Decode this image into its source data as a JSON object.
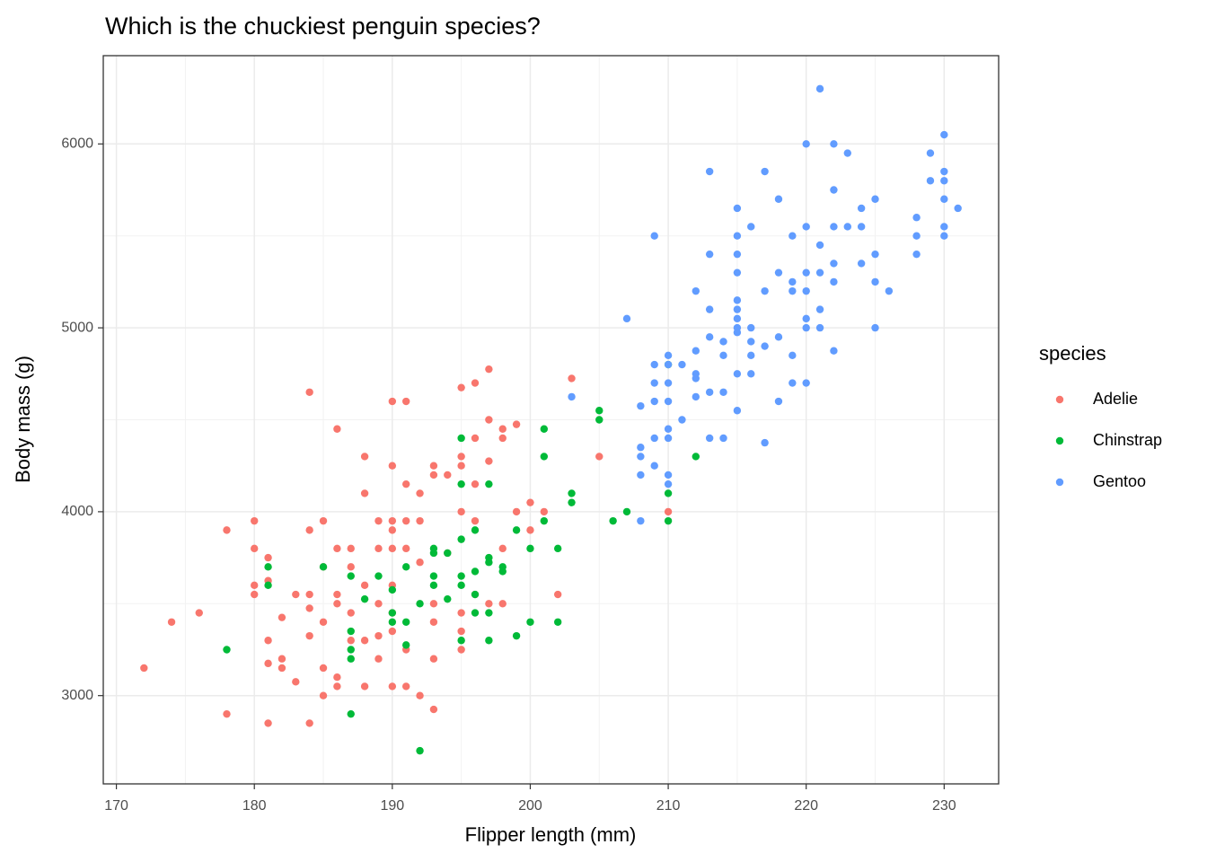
{
  "chart_data": {
    "type": "scatter",
    "title": "Which is the chuckiest penguin species?",
    "x_label": "Flipper length (mm)",
    "y_label": "Body mass (g)",
    "legend_title": "species",
    "legend": "right",
    "grid": true,
    "xlim": [
      169.05,
      233.95
    ],
    "ylim": [
      2520,
      6480
    ],
    "xticks": [
      170,
      180,
      190,
      200,
      210,
      220,
      230
    ],
    "yticks": [
      3000,
      4000,
      5000,
      6000
    ],
    "x_minor_ticks": [
      175,
      185,
      195,
      205,
      215,
      225
    ],
    "y_minor_ticks": [
      3500,
      4500,
      5500
    ],
    "series": [
      {
        "name": "Adelie",
        "color": "#F8766D",
        "x": [
          172,
          174,
          176,
          178,
          178,
          180,
          180,
          180,
          180,
          181,
          181,
          181,
          181,
          181,
          182,
          182,
          182,
          183,
          183,
          184,
          184,
          184,
          184,
          184,
          184,
          185,
          185,
          185,
          185,
          185,
          186,
          186,
          186,
          186,
          186,
          186,
          187,
          187,
          187,
          187,
          188,
          188,
          188,
          188,
          188,
          189,
          189,
          189,
          189,
          189,
          190,
          190,
          190,
          190,
          190,
          190,
          190,
          190,
          190,
          191,
          191,
          191,
          191,
          191,
          191,
          192,
          192,
          192,
          192,
          193,
          193,
          193,
          193,
          193,
          193,
          194,
          194,
          195,
          195,
          195,
          195,
          195,
          195,
          195,
          196,
          196,
          196,
          196,
          196,
          197,
          197,
          197,
          197,
          198,
          198,
          198,
          198,
          199,
          199,
          200,
          200,
          201,
          202,
          203,
          205,
          210
        ],
        "values": [
          3150,
          3400,
          3450,
          3900,
          2900,
          3950,
          3800,
          3600,
          3550,
          3750,
          3625,
          3300,
          3175,
          2850,
          3425,
          3200,
          3150,
          3550,
          3075,
          4650,
          3900,
          3550,
          3475,
          3325,
          2850,
          3950,
          3700,
          3400,
          3150,
          3000,
          4450,
          3800,
          3550,
          3500,
          3100,
          3050,
          3800,
          3700,
          3450,
          3300,
          4300,
          4100,
          3600,
          3300,
          3050,
          3950,
          3800,
          3500,
          3325,
          3200,
          4600,
          4250,
          3950,
          3900,
          3800,
          3600,
          3450,
          3350,
          3050,
          4600,
          4150,
          3950,
          3800,
          3250,
          3050,
          4100,
          3950,
          3725,
          3000,
          4250,
          4200,
          3500,
          3400,
          3200,
          2925,
          4200,
          3775,
          4675,
          4300,
          4250,
          4000,
          3450,
          3350,
          3250,
          4700,
          4400,
          4150,
          3950,
          3550,
          4775,
          4500,
          4275,
          3500,
          4450,
          4400,
          3800,
          3500,
          4475,
          4000,
          4050,
          3900,
          4000,
          3550,
          4725,
          4300,
          4000
        ]
      },
      {
        "name": "Chinstrap",
        "color": "#00BA38",
        "x": [
          178,
          181,
          181,
          185,
          187,
          187,
          187,
          187,
          187,
          188,
          189,
          190,
          190,
          190,
          191,
          191,
          191,
          192,
          192,
          193,
          193,
          193,
          193,
          194,
          194,
          195,
          195,
          195,
          195,
          195,
          195,
          196,
          196,
          196,
          196,
          197,
          197,
          197,
          197,
          197,
          198,
          198,
          199,
          199,
          200,
          200,
          201,
          201,
          201,
          202,
          202,
          203,
          203,
          205,
          205,
          206,
          207,
          210,
          210,
          210,
          212
        ],
        "values": [
          3250,
          3700,
          3600,
          3700,
          3650,
          3350,
          3250,
          3200,
          2900,
          3525,
          3650,
          3575,
          3450,
          3400,
          3700,
          3400,
          3275,
          3500,
          2700,
          3800,
          3775,
          3650,
          3600,
          3775,
          3525,
          4400,
          4150,
          3850,
          3650,
          3600,
          3300,
          3900,
          3675,
          3550,
          3450,
          4150,
          3750,
          3725,
          3450,
          3300,
          3700,
          3675,
          3900,
          3325,
          3800,
          3400,
          4450,
          4300,
          3950,
          3800,
          3400,
          4100,
          4050,
          4550,
          4500,
          3950,
          4000,
          4800,
          4100,
          3950,
          4300
        ]
      },
      {
        "name": "Gentoo",
        "color": "#619CFF",
        "x": [
          203,
          207,
          208,
          208,
          208,
          208,
          208,
          209,
          209,
          209,
          209,
          209,
          209,
          210,
          210,
          210,
          210,
          210,
          210,
          210,
          210,
          211,
          211,
          212,
          212,
          212,
          212,
          212,
          213,
          213,
          213,
          213,
          213,
          213,
          214,
          214,
          214,
          214,
          215,
          215,
          215,
          215,
          215,
          215,
          215,
          215,
          215,
          215,
          215,
          216,
          216,
          216,
          216,
          216,
          217,
          217,
          217,
          217,
          218,
          218,
          218,
          218,
          219,
          219,
          219,
          219,
          219,
          220,
          220,
          220,
          220,
          220,
          220,
          220,
          221,
          221,
          221,
          221,
          221,
          222,
          222,
          222,
          222,
          222,
          222,
          223,
          223,
          224,
          224,
          224,
          225,
          225,
          225,
          225,
          226,
          228,
          228,
          228,
          229,
          229,
          230,
          230,
          230,
          230,
          230,
          230,
          231
        ],
        "values": [
          4625,
          5050,
          4575,
          4350,
          4300,
          4200,
          3950,
          5500,
          4800,
          4700,
          4600,
          4400,
          4250,
          4850,
          4800,
          4700,
          4600,
          4450,
          4400,
          4200,
          4150,
          4800,
          4500,
          5200,
          4875,
          4750,
          4725,
          4625,
          5850,
          5400,
          5100,
          4950,
          4650,
          4400,
          4925,
          4850,
          4650,
          4400,
          5650,
          5500,
          5400,
          5300,
          5150,
          5100,
          5050,
          5000,
          4975,
          4750,
          4550,
          5550,
          5000,
          4925,
          4850,
          4750,
          5850,
          5200,
          4900,
          4375,
          5700,
          5300,
          4950,
          4600,
          5500,
          5250,
          5200,
          4850,
          4700,
          6000,
          5550,
          5300,
          5200,
          5050,
          5000,
          4700,
          6300,
          5450,
          5300,
          5100,
          5000,
          6000,
          5750,
          5550,
          5350,
          5250,
          4875,
          5950,
          5550,
          5650,
          5550,
          5350,
          5700,
          5400,
          5250,
          5000,
          5200,
          5600,
          5500,
          5400,
          5950,
          5800,
          6050,
          5850,
          5800,
          5700,
          5550,
          5500,
          5650
        ]
      }
    ]
  }
}
